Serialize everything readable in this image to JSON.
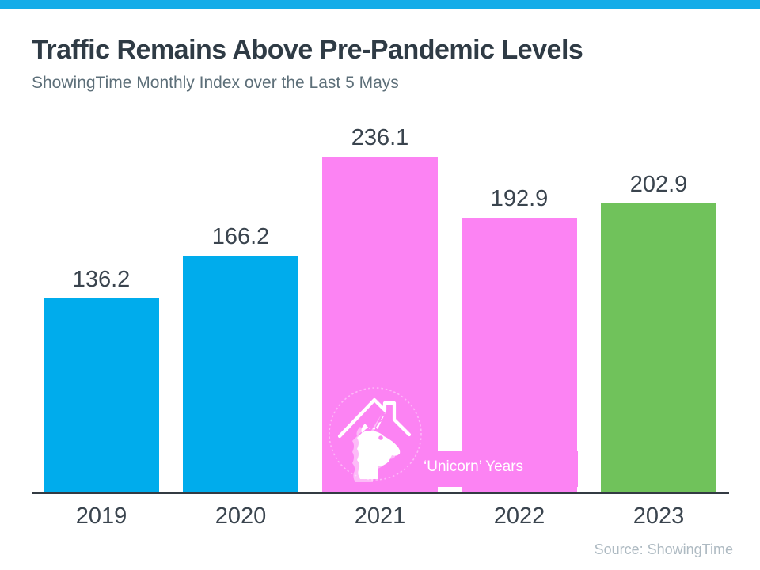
{
  "page": {
    "background_color": "#FFFFFF",
    "top_accent_color": "#15ACE8"
  },
  "header": {
    "title": "Traffic Remains Above Pre-Pandemic Levels",
    "subtitle": "ShowingTime Monthly Index over the Last 5 Mays"
  },
  "chart_data": {
    "type": "bar",
    "title": "Traffic Remains Above Pre-Pandemic Levels",
    "subtitle": "ShowingTime Monthly Index over the Last 5 Mays",
    "categories": [
      "2019",
      "2020",
      "2021",
      "2022",
      "2023"
    ],
    "values": [
      136.2,
      166.2,
      236.1,
      192.9,
      202.9
    ],
    "value_labels": [
      "136.2",
      "166.2",
      "236.1",
      "192.9",
      "202.9"
    ],
    "series_colors": [
      "#00ACEC",
      "#00ACEC",
      "#FC83F3",
      "#FC83F3",
      "#70C25B"
    ],
    "ylim": [
      0,
      250
    ],
    "grid": false,
    "legend": false,
    "axis_line_color": "#333B43",
    "label_color": "#3A444E",
    "annotation": {
      "label": "‘Unicorn’ Years",
      "applies_to_categories": [
        "2021",
        "2022"
      ],
      "background_color": "#FC83F3",
      "text_color": "#FFFFFF",
      "icon": "unicorn-house-logo"
    }
  },
  "footer": {
    "source": "Source: ShowingTime"
  }
}
